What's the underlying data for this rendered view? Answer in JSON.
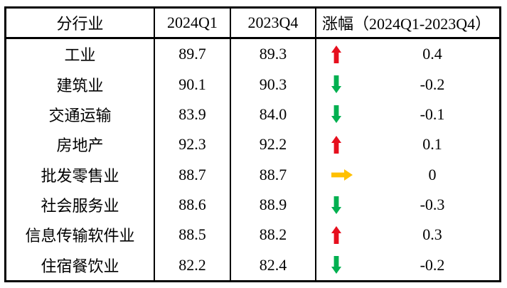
{
  "table": {
    "columns": [
      {
        "label": "分行业"
      },
      {
        "label": "2024Q1"
      },
      {
        "label": "2023Q4"
      },
      {
        "label": "涨幅（2024Q1-2023Q4）"
      }
    ],
    "rows": [
      {
        "industry": "工业",
        "q1_2024": "89.7",
        "q4_2023": "89.3",
        "direction": "up",
        "change": "0.4"
      },
      {
        "industry": "建筑业",
        "q1_2024": "90.1",
        "q4_2023": "90.3",
        "direction": "down",
        "change": "-0.2"
      },
      {
        "industry": "交通运输",
        "q1_2024": "83.9",
        "q4_2023": "84.0",
        "direction": "down",
        "change": "-0.1"
      },
      {
        "industry": "房地产",
        "q1_2024": "92.3",
        "q4_2023": "92.2",
        "direction": "up",
        "change": "0.1"
      },
      {
        "industry": "批发零售业",
        "q1_2024": "88.7",
        "q4_2023": "88.7",
        "direction": "flat",
        "change": "0"
      },
      {
        "industry": "社会服务业",
        "q1_2024": "88.6",
        "q4_2023": "88.9",
        "direction": "down",
        "change": "-0.3"
      },
      {
        "industry": "信息传输软件业",
        "q1_2024": "88.5",
        "q4_2023": "88.2",
        "direction": "up",
        "change": "0.3"
      },
      {
        "industry": "住宿餐饮业",
        "q1_2024": "82.2",
        "q4_2023": "82.4",
        "direction": "down",
        "change": "-0.2"
      }
    ]
  },
  "colors": {
    "increase": "#e60f1e",
    "decrease": "#00b050",
    "unchanged": "#ffc000",
    "border": "#000000",
    "text": "#000000",
    "background": "#ffffff"
  },
  "icons": {
    "up": "up-arrow-icon",
    "down": "down-arrow-icon",
    "flat": "right-arrow-icon"
  },
  "chart_data": {
    "type": "table",
    "title": "",
    "columns": [
      "分行业",
      "2024Q1",
      "2023Q4",
      "涨幅（2024Q1-2023Q4）"
    ],
    "rows": [
      [
        "工业",
        89.7,
        89.3,
        0.4
      ],
      [
        "建筑业",
        90.1,
        90.3,
        -0.2
      ],
      [
        "交通运输",
        83.9,
        84.0,
        -0.1
      ],
      [
        "房地产",
        92.3,
        92.2,
        0.1
      ],
      [
        "批发零售业",
        88.7,
        88.7,
        0
      ],
      [
        "社会服务业",
        88.6,
        88.9,
        -0.3
      ],
      [
        "信息传输软件业",
        88.5,
        88.2,
        0.3
      ],
      [
        "住宿餐饮业",
        82.2,
        82.4,
        -0.2
      ]
    ],
    "notes": "Trend arrows: red up = increase, green down = decrease, gold right = unchanged"
  }
}
